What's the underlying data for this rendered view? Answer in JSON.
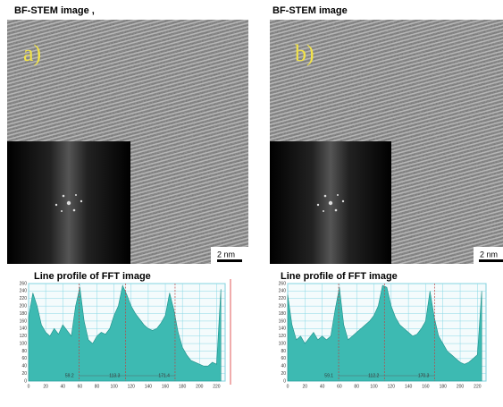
{
  "panels": [
    {
      "title": "BF-STEM image ,",
      "label": "a)",
      "scale_bar": "2 nm"
    },
    {
      "title": "BF-STEM image",
      "label": "b)",
      "scale_bar": "2 nm"
    }
  ],
  "chart_data": [
    {
      "type": "area",
      "title": "Line profile of FFT image",
      "color": "#3dbab2",
      "grid": true,
      "x": [
        0,
        5,
        10,
        15,
        20,
        25,
        30,
        35,
        40,
        45,
        50,
        55,
        60,
        65,
        70,
        75,
        80,
        85,
        90,
        95,
        100,
        105,
        110,
        115,
        120,
        125,
        130,
        135,
        140,
        145,
        150,
        155,
        160,
        165,
        170,
        175,
        180,
        185,
        190,
        195,
        200,
        205,
        210,
        215,
        220,
        225
      ],
      "values": [
        170,
        235,
        200,
        150,
        130,
        120,
        140,
        125,
        150,
        135,
        120,
        200,
        250,
        160,
        110,
        100,
        120,
        130,
        125,
        140,
        175,
        200,
        255,
        230,
        200,
        180,
        165,
        150,
        140,
        135,
        140,
        155,
        175,
        235,
        190,
        130,
        90,
        70,
        55,
        50,
        45,
        40,
        40,
        50,
        45,
        245
      ],
      "markers": [
        59.2,
        113.3,
        171.4
      ],
      "xlim": [
        0,
        230
      ],
      "ylim": [
        0,
        260
      ],
      "xticks": [
        0,
        20,
        40,
        60,
        80,
        100,
        120,
        140,
        160,
        180,
        200,
        220
      ],
      "yticks": [
        0,
        20,
        40,
        60,
        80,
        100,
        120,
        140,
        160,
        180,
        200,
        220,
        240,
        260
      ]
    },
    {
      "type": "area",
      "title": "Line profile of FFT image",
      "color": "#3dbab2",
      "grid": true,
      "x": [
        0,
        5,
        10,
        15,
        20,
        25,
        30,
        35,
        40,
        45,
        50,
        55,
        60,
        65,
        70,
        75,
        80,
        85,
        90,
        95,
        100,
        105,
        110,
        115,
        120,
        125,
        130,
        135,
        140,
        145,
        150,
        155,
        160,
        165,
        170,
        175,
        180,
        185,
        190,
        195,
        200,
        205,
        210,
        215,
        220,
        225
      ],
      "values": [
        230,
        150,
        110,
        120,
        100,
        115,
        130,
        110,
        120,
        110,
        120,
        190,
        250,
        150,
        110,
        120,
        130,
        140,
        150,
        160,
        175,
        200,
        255,
        250,
        200,
        170,
        150,
        140,
        130,
        120,
        125,
        140,
        160,
        240,
        170,
        120,
        100,
        80,
        70,
        60,
        50,
        45,
        50,
        60,
        70,
        240
      ],
      "markers": [
        59.1,
        112.2,
        170.3
      ],
      "xlim": [
        0,
        230
      ],
      "ylim": [
        0,
        260
      ],
      "xticks": [
        0,
        20,
        40,
        60,
        80,
        100,
        120,
        140,
        160,
        180,
        200,
        220
      ],
      "yticks": [
        0,
        20,
        40,
        60,
        80,
        100,
        120,
        140,
        160,
        180,
        200,
        220,
        240,
        260
      ]
    }
  ]
}
